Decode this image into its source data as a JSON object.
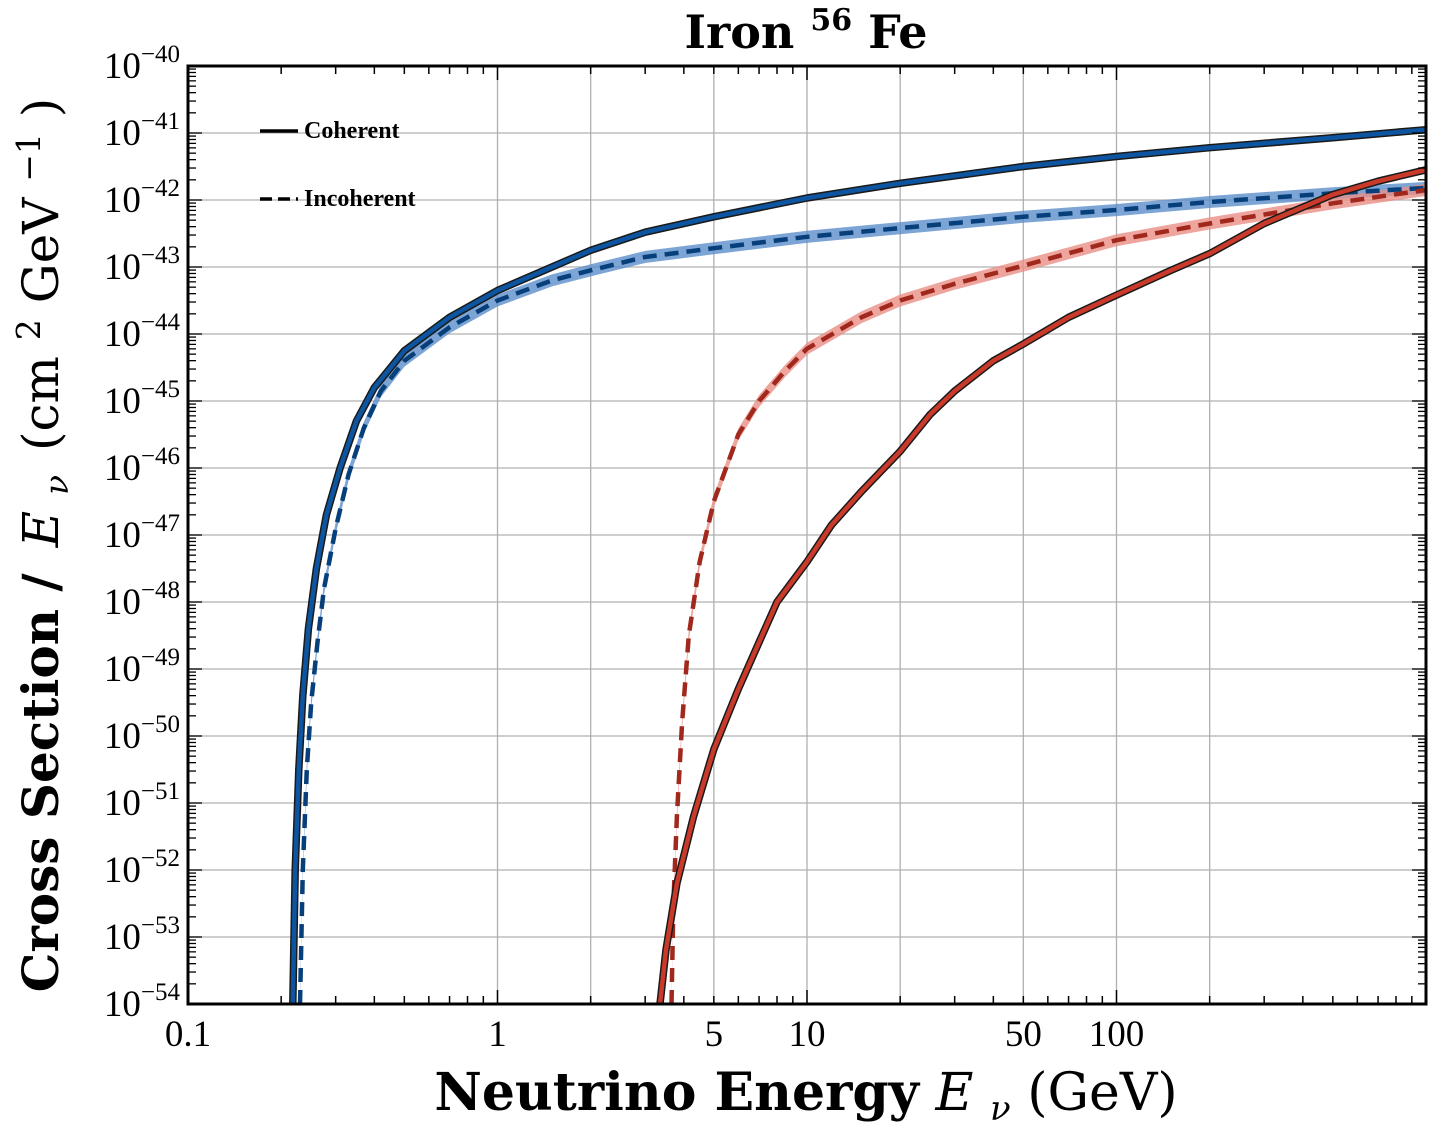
{
  "chart_data": {
    "type": "line",
    "title_main": "Iron",
    "title_sup": "56",
    "title_tail": "Fe",
    "xlabel_bold": "Neutrino Energy",
    "xlabel_symbol": "E",
    "xlabel_sub": "ν",
    "xlabel_unit": "(GeV)",
    "ylabel_bold": "Cross Section /",
    "ylabel_symbol": "E",
    "ylabel_sub": "ν",
    "ylabel_unit_open": "(cm",
    "ylabel_unit_sup": "2",
    "ylabel_unit_mid": " GeV",
    "ylabel_unit_sup2": "−1",
    "ylabel_unit_close": ")",
    "x_scale": "log",
    "y_scale": "log",
    "xlim": [
      0.1,
      1000
    ],
    "ylim": [
      1e-54,
      1e-40
    ],
    "x_ticks": [
      {
        "value": 0.1,
        "label": "0.1"
      },
      {
        "value": 1,
        "label": "1"
      },
      {
        "value": 5,
        "label": "5"
      },
      {
        "value": 10,
        "label": "10"
      },
      {
        "value": 50,
        "label": "50"
      },
      {
        "value": 100,
        "label": "100"
      }
    ],
    "y_ticks": [
      {
        "exp": -40,
        "base": "10",
        "sup": "−40"
      },
      {
        "exp": -41,
        "base": "10",
        "sup": "−41"
      },
      {
        "exp": -42,
        "base": "10",
        "sup": "−42"
      },
      {
        "exp": -43,
        "base": "10",
        "sup": "−43"
      },
      {
        "exp": -44,
        "base": "10",
        "sup": "−44"
      },
      {
        "exp": -45,
        "base": "10",
        "sup": "−45"
      },
      {
        "exp": -46,
        "base": "10",
        "sup": "−46"
      },
      {
        "exp": -47,
        "base": "10",
        "sup": "−47"
      },
      {
        "exp": -48,
        "base": "10",
        "sup": "−48"
      },
      {
        "exp": -49,
        "base": "10",
        "sup": "−49"
      },
      {
        "exp": -50,
        "base": "10",
        "sup": "−50"
      },
      {
        "exp": -51,
        "base": "10",
        "sup": "−51"
      },
      {
        "exp": -52,
        "base": "10",
        "sup": "−52"
      },
      {
        "exp": -53,
        "base": "10",
        "sup": "−53"
      },
      {
        "exp": -54,
        "base": "10",
        "sup": "−54"
      }
    ],
    "x_grid_values": [
      0.1,
      1,
      2,
      5,
      10,
      20,
      50,
      100,
      200
    ],
    "grid": true,
    "legend": {
      "placement": "top-left",
      "entries": [
        {
          "label": "Coherent",
          "style": "solid"
        },
        {
          "label": "Incoherent",
          "style": "dashed"
        }
      ]
    },
    "colors": {
      "blue": "#0d55a0",
      "blue_band": "#5b8fca",
      "red": "#c93a2b",
      "red_band": "#ea8f86",
      "dark": "#1a1a1a"
    },
    "series": [
      {
        "color": "blue",
        "style": "solid",
        "points": [
          [
            0.218,
            -54
          ],
          [
            0.222,
            -52
          ],
          [
            0.228,
            -50.5
          ],
          [
            0.235,
            -49.4
          ],
          [
            0.245,
            -48.4
          ],
          [
            0.26,
            -47.5
          ],
          [
            0.28,
            -46.7
          ],
          [
            0.31,
            -46.0
          ],
          [
            0.35,
            -45.3
          ],
          [
            0.4,
            -44.8
          ],
          [
            0.5,
            -44.25
          ],
          [
            0.7,
            -43.75
          ],
          [
            1,
            -43.35
          ],
          [
            1.5,
            -43.0
          ],
          [
            2,
            -42.75
          ],
          [
            3,
            -42.48
          ],
          [
            5,
            -42.25
          ],
          [
            10,
            -41.97
          ],
          [
            20,
            -41.75
          ],
          [
            50,
            -41.5
          ],
          [
            100,
            -41.35
          ],
          [
            200,
            -41.22
          ],
          [
            500,
            -41.07
          ],
          [
            1000,
            -40.95
          ]
        ]
      },
      {
        "color": "blue",
        "style": "dashed",
        "band": true,
        "band_halfwidth_dex": 0.09,
        "points": [
          [
            0.23,
            -54
          ],
          [
            0.235,
            -52
          ],
          [
            0.242,
            -50.5
          ],
          [
            0.25,
            -49.5
          ],
          [
            0.262,
            -48.6
          ],
          [
            0.275,
            -47.8
          ],
          [
            0.3,
            -46.9
          ],
          [
            0.33,
            -46.1
          ],
          [
            0.37,
            -45.4
          ],
          [
            0.42,
            -44.85
          ],
          [
            0.5,
            -44.4
          ],
          [
            0.7,
            -43.9
          ],
          [
            1,
            -43.5
          ],
          [
            1.5,
            -43.2
          ],
          [
            2,
            -43.05
          ],
          [
            3,
            -42.85
          ],
          [
            5,
            -42.72
          ],
          [
            10,
            -42.55
          ],
          [
            20,
            -42.42
          ],
          [
            50,
            -42.25
          ],
          [
            100,
            -42.15
          ],
          [
            200,
            -42.03
          ],
          [
            500,
            -41.9
          ],
          [
            1000,
            -41.82
          ]
        ]
      },
      {
        "color": "red",
        "style": "dashed",
        "band": true,
        "band_halfwidth_dex": 0.09,
        "points": [
          [
            3.65,
            -54
          ],
          [
            3.7,
            -52.5
          ],
          [
            3.8,
            -51.2
          ],
          [
            3.95,
            -49.8
          ],
          [
            4.15,
            -48.5
          ],
          [
            4.5,
            -47.4
          ],
          [
            5,
            -46.5
          ],
          [
            6,
            -45.5
          ],
          [
            7,
            -45.0
          ],
          [
            8.5,
            -44.55
          ],
          [
            10,
            -44.22
          ],
          [
            15,
            -43.75
          ],
          [
            20,
            -43.5
          ],
          [
            30,
            -43.25
          ],
          [
            50,
            -42.98
          ],
          [
            100,
            -42.6
          ],
          [
            200,
            -42.35
          ],
          [
            500,
            -42.05
          ],
          [
            1000,
            -41.85
          ]
        ]
      },
      {
        "color": "red",
        "style": "solid",
        "points": [
          [
            3.35,
            -54
          ],
          [
            3.5,
            -53.2
          ],
          [
            3.8,
            -52.2
          ],
          [
            4.3,
            -51.2
          ],
          [
            5,
            -50.2
          ],
          [
            6,
            -49.3
          ],
          [
            7,
            -48.6
          ],
          [
            8,
            -48.0
          ],
          [
            10,
            -47.4
          ],
          [
            12,
            -46.85
          ],
          [
            15,
            -46.35
          ],
          [
            20,
            -45.75
          ],
          [
            25,
            -45.2
          ],
          [
            30,
            -44.85
          ],
          [
            40,
            -44.4
          ],
          [
            50,
            -44.15
          ],
          [
            70,
            -43.75
          ],
          [
            100,
            -43.42
          ],
          [
            150,
            -43.05
          ],
          [
            200,
            -42.8
          ],
          [
            300,
            -42.35
          ],
          [
            500,
            -41.92
          ],
          [
            700,
            -41.72
          ],
          [
            1000,
            -41.55
          ]
        ]
      }
    ]
  }
}
